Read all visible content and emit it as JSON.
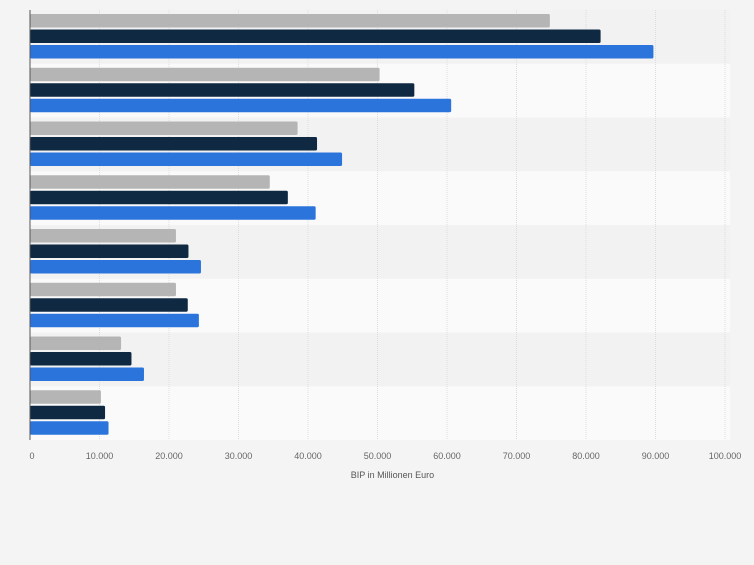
{
  "chart_data": {
    "type": "bar",
    "orientation": "horizontal",
    "xlabel": "BIP in Millionen Euro",
    "xlim": [
      0,
      100000
    ],
    "x_ticks": [
      0,
      10000,
      20000,
      30000,
      40000,
      50000,
      60000,
      70000,
      80000,
      90000,
      100000
    ],
    "x_tick_labels": [
      "0",
      "10.000",
      "20.000",
      "30.000",
      "40.000",
      "50.000",
      "60.000",
      "70.000",
      "80.000",
      "90.000",
      "100.000"
    ],
    "grid": true,
    "category_count": 8,
    "series": [
      {
        "color": "#b5b5b5",
        "values": [
          74800,
          50300,
          38500,
          34500,
          21000,
          21000,
          13100,
          10200
        ]
      },
      {
        "color": "#0f2942",
        "values": [
          82100,
          55300,
          41300,
          37100,
          22800,
          22700,
          14600,
          10800
        ]
      },
      {
        "color": "#2b74dc",
        "values": [
          89700,
          60600,
          44900,
          41100,
          24600,
          24300,
          16400,
          11300
        ]
      }
    ]
  }
}
